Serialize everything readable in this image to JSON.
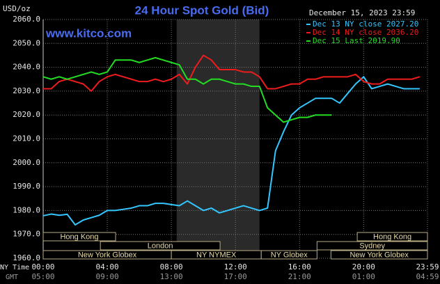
{
  "chart_data": {
    "type": "line",
    "title": "24 Hour Spot Gold (Bid)",
    "site": "www.kitco.com",
    "y_unit": "USD/oz",
    "timestamp": "December 15, 2023 23:59",
    "x_row_label": "NY Time",
    "x2_row_label": "GMT",
    "x": [
      0,
      0.5,
      1,
      1.5,
      2,
      2.5,
      3,
      3.5,
      4,
      4.5,
      5,
      5.5,
      6,
      6.5,
      7,
      7.5,
      8,
      8.5,
      9,
      9.5,
      10,
      10.5,
      11,
      11.5,
      12,
      12.5,
      13,
      13.5,
      14,
      14.5,
      15,
      15.5,
      16,
      16.5,
      17,
      17.5,
      18,
      18.5,
      19,
      19.5,
      20,
      20.5,
      21,
      21.5,
      22,
      22.5,
      23,
      23.5
    ],
    "xlim": [
      0,
      23.983
    ],
    "xticks": [
      {
        "value": 0,
        "label": "00:00"
      },
      {
        "value": 4,
        "label": "04:00"
      },
      {
        "value": 8,
        "label": "08:00"
      },
      {
        "value": 12,
        "label": "12:00"
      },
      {
        "value": 16,
        "label": "16:00"
      },
      {
        "value": 20,
        "label": "20:00"
      },
      {
        "value": 23.983,
        "label": "23:59"
      }
    ],
    "x2ticklabels": [
      "05:00",
      "09:00",
      "13:00",
      "17:00",
      "21:00",
      "01:00",
      "04:59"
    ],
    "ylim": [
      1960,
      2060
    ],
    "yticks": [
      {
        "value": 1960,
        "label": "1960.0"
      },
      {
        "value": 1970,
        "label": "1970.0"
      },
      {
        "value": 1980,
        "label": "1980.0"
      },
      {
        "value": 1990,
        "label": "1990.0"
      },
      {
        "value": 2000,
        "label": "2000.0"
      },
      {
        "value": 2010,
        "label": "2010.0"
      },
      {
        "value": 2020,
        "label": "2020.0"
      },
      {
        "value": 2030,
        "label": "2030.0"
      },
      {
        "value": 2040,
        "label": "2040.0"
      },
      {
        "value": 2050,
        "label": "2050.0"
      },
      {
        "value": 2060,
        "label": "2060.0"
      }
    ],
    "grid": true,
    "shaded_range": [
      8.33,
      13.5
    ],
    "series": [
      {
        "name": "Dec 13 NY close 2027.20",
        "color": "#33c6ff",
        "values": [
          1977.8,
          1978.5,
          1978,
          1978.4,
          1974,
          1976,
          1977,
          1978,
          1980,
          1980,
          1980.5,
          1981,
          1982,
          1982,
          1983,
          1983,
          1982.5,
          1982,
          1984,
          1982,
          1980,
          1981,
          1979,
          1980,
          1981,
          1982,
          1981,
          1980,
          1981,
          2005,
          2013,
          2020,
          2023,
          2025,
          2027,
          2027,
          2027,
          2025,
          2029,
          2033,
          2036,
          2031,
          2032,
          2033,
          2032,
          2031,
          2031,
          2031
        ]
      },
      {
        "name": "Dec 14 NY close 2036.20",
        "color": "#ee1c1c",
        "values": [
          2031,
          2031,
          2034,
          2035,
          2034,
          2033,
          2030,
          2034,
          2036,
          2037,
          2036,
          2035,
          2034,
          2034,
          2035,
          2034,
          2035,
          2037,
          2033,
          2040,
          2045,
          2043,
          2039,
          2039,
          2039,
          2038,
          2038,
          2036,
          2031,
          2031,
          2032,
          2033,
          2033,
          2035,
          2035,
          2036,
          2036,
          2036,
          2036,
          2037,
          2034,
          2033,
          2033,
          2035,
          2035,
          2035,
          2035,
          2036
        ]
      },
      {
        "name": "Dec 15 Last 2019.90",
        "color": "#22dd22",
        "values": [
          2036,
          2035,
          2036,
          2035,
          2036,
          2037,
          2038,
          2037,
          2038,
          2043,
          2043,
          2043,
          2042,
          2043,
          2044,
          2043,
          2042,
          2041,
          2035,
          2035,
          2033,
          2035,
          2035,
          2034,
          2033,
          2033,
          2032,
          2032,
          2023,
          2020,
          2017,
          2018,
          2019,
          2019,
          2020,
          2020,
          2020,
          null,
          null,
          null,
          null,
          null,
          null,
          null,
          null,
          null,
          null,
          null
        ]
      }
    ],
    "sessions": [
      {
        "label": "Hong Kong",
        "row": 0,
        "start": 0,
        "end": 4.52
      },
      {
        "label": "Hong Kong",
        "row": 0,
        "start": 19.6,
        "end": 23.983
      },
      {
        "label": "London",
        "row": 1,
        "start": 3.57,
        "end": 11.04
      },
      {
        "label": "Sydney",
        "row": 1,
        "start": 17.09,
        "end": 23.983
      },
      {
        "label": "New York Globex",
        "row": 2,
        "start": 0,
        "end": 8
      },
      {
        "label": "NY NYMEX",
        "row": 2,
        "start": 8,
        "end": 13.61
      },
      {
        "label": "NY Globex",
        "row": 2,
        "start": 13.61,
        "end": 17.09
      },
      {
        "label": "New York Globex",
        "row": 2,
        "start": 17.96,
        "end": 23.983
      }
    ]
  }
}
